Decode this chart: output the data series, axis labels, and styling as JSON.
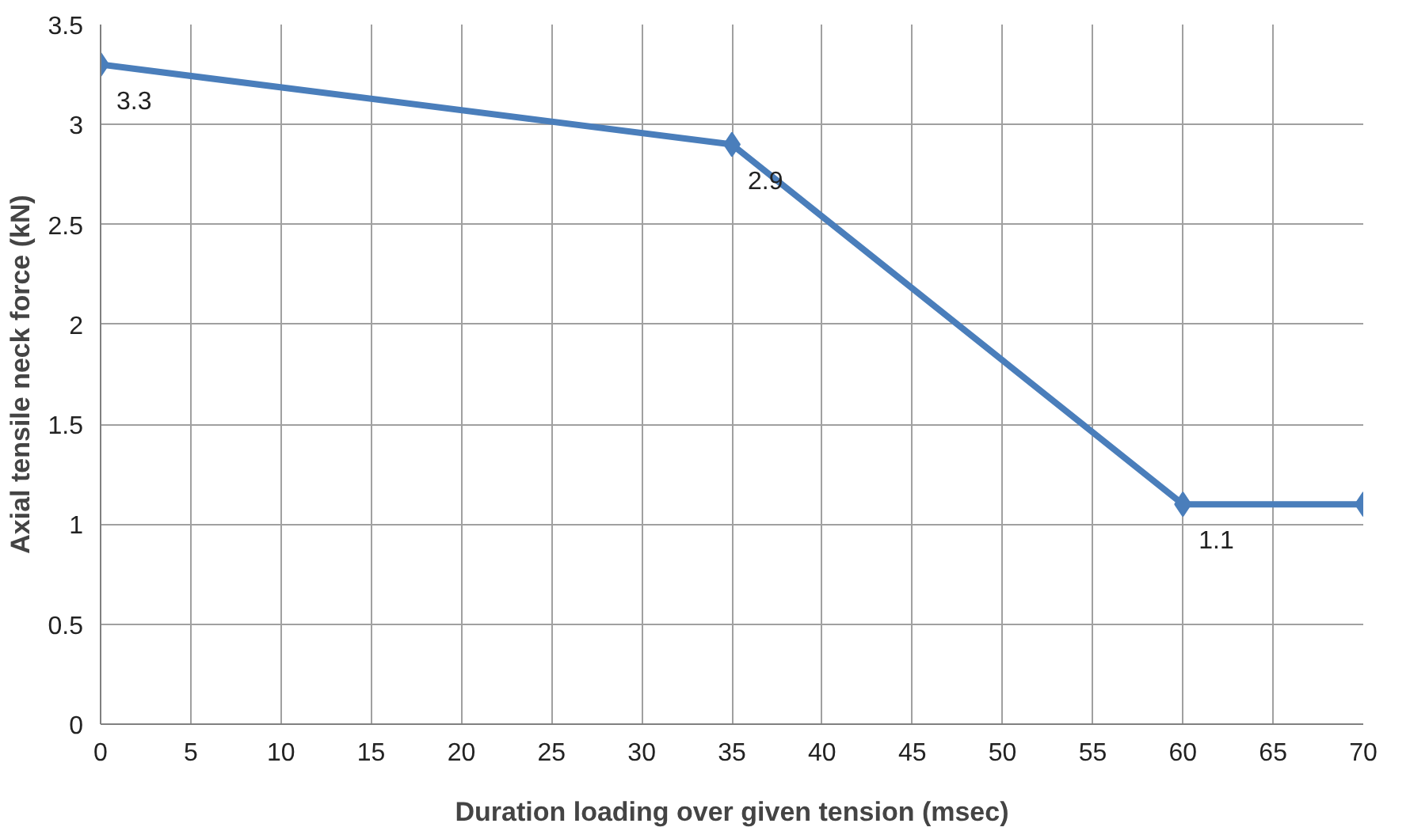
{
  "chart_data": {
    "type": "line",
    "xlabel": "Duration loading over given tension (msec)",
    "ylabel": "Axial tensile neck force (kN)",
    "x": [
      0,
      35,
      60,
      70
    ],
    "series": [
      {
        "color": "#4a7ebb",
        "values": [
          3.3,
          2.9,
          1.1,
          1.1
        ],
        "value_labels": [
          "3.3",
          "2.9",
          "1.1",
          null
        ]
      }
    ],
    "xlim": [
      0,
      70
    ],
    "xticks": [
      0,
      5,
      10,
      15,
      20,
      25,
      30,
      35,
      40,
      45,
      50,
      55,
      60,
      65,
      70
    ],
    "ylim": [
      0,
      3.5
    ],
    "yticks": [
      0,
      0.5,
      1,
      1.5,
      2,
      2.5,
      3,
      3.5
    ],
    "grid": true,
    "marker": "diamond",
    "line_style": "solid"
  }
}
